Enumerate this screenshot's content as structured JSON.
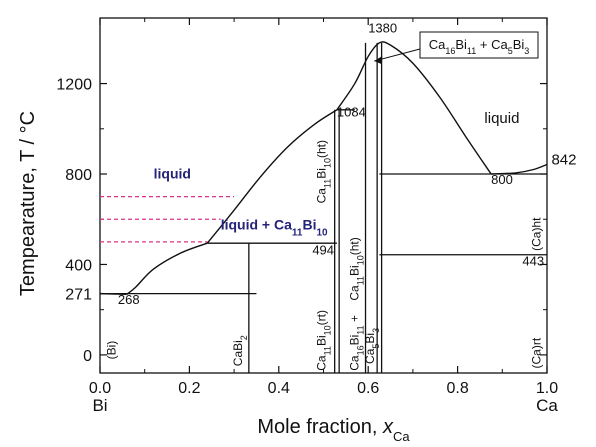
{
  "chart_data": {
    "type": "line",
    "xlim": [
      0.0,
      1.0
    ],
    "ylim": [
      -80,
      1490
    ],
    "x_ticks": [
      "0.0",
      "0.2",
      "0.4",
      "0.6",
      "0.8",
      "1.0"
    ],
    "y_ticks": [
      "0",
      "400",
      "800",
      "1200"
    ],
    "y_special_ticks": [
      "271"
    ],
    "xlabel": {
      "main": "Mole fraction, ",
      "var": "x",
      "sub": "Ca"
    },
    "ylabel": "Tempearature, T / °C",
    "x_end_labels": {
      "left": "Bi",
      "right": "Ca"
    },
    "liquidus": [
      {
        "name": "",
        "points": [
          [
            0.0,
            271
          ],
          [
            0.06,
            268
          ]
        ]
      },
      {
        "name": "",
        "points": [
          [
            0.06,
            268
          ],
          [
            0.08,
            300
          ],
          [
            0.12,
            380
          ],
          [
            0.18,
            450
          ],
          [
            0.24,
            494
          ]
        ]
      },
      {
        "name": "",
        "points": [
          [
            0.24,
            494
          ],
          [
            0.3,
            640
          ],
          [
            0.36,
            790
          ],
          [
            0.42,
            920
          ],
          [
            0.48,
            1020
          ],
          [
            0.53,
            1084
          ]
        ]
      },
      {
        "name": "",
        "points": [
          [
            0.53,
            1084
          ],
          [
            0.57,
            1200
          ],
          [
            0.6,
            1320
          ],
          [
            0.625,
            1380
          ],
          [
            0.65,
            1370
          ],
          [
            0.7,
            1290
          ],
          [
            0.76,
            1140
          ],
          [
            0.82,
            960
          ],
          [
            0.875,
            800
          ]
        ]
      },
      {
        "name": "",
        "points": [
          [
            0.875,
            800
          ],
          [
            0.93,
            805
          ],
          [
            0.97,
            820
          ],
          [
            1.0,
            842
          ]
        ]
      }
    ],
    "horizontal_lines": [
      {
        "x": [
          0.0,
          0.35
        ],
        "y": 271
      },
      {
        "x": [
          0.24,
          0.53
        ],
        "y": 494
      },
      {
        "x": [
          0.53,
          0.57
        ],
        "y": 1084
      },
      {
        "x": [
          0.625,
          1.0
        ],
        "y": 800
      },
      {
        "x": [
          0.625,
          1.0
        ],
        "y": 443
      }
    ],
    "vertical_lines": [
      {
        "x": 0.333,
        "y": [
          -80,
          494
        ]
      },
      {
        "x": 0.525,
        "y": [
          -80,
          1084
        ]
      },
      {
        "x": 0.535,
        "y": [
          -80,
          1084
        ]
      },
      {
        "x": 0.594,
        "y": [
          -80,
          1380
        ]
      },
      {
        "x": 0.62,
        "y": [
          -80,
          1380
        ]
      },
      {
        "x": 0.63,
        "y": [
          -80,
          1380
        ]
      }
    ],
    "dashed_lines": [
      {
        "x": [
          0.0,
          0.3
        ],
        "y": 700
      },
      {
        "x": [
          0.0,
          0.27
        ],
        "y": 600
      },
      {
        "x": [
          0.0,
          0.24
        ],
        "y": 500
      }
    ],
    "point_labels": [
      {
        "text": "268",
        "x": 0.04,
        "y": 225
      },
      {
        "text": "494",
        "x": 0.475,
        "y": 445
      },
      {
        "text": "1084",
        "x": 0.53,
        "y": 1055
      },
      {
        "text": "1380",
        "x": 0.6,
        "y": 1425
      },
      {
        "text": "800",
        "x": 0.875,
        "y": 755
      },
      {
        "text": "842",
        "x": 1.01,
        "y": 842
      },
      {
        "text": "443",
        "x": 0.945,
        "y": 395
      }
    ],
    "region_labels": [
      {
        "text": "liquid",
        "x": 0.12,
        "y": 780,
        "color": "#25237a"
      },
      {
        "text": "liquid",
        "x": 0.86,
        "y": 1025,
        "color": "#111111"
      },
      {
        "text": "liquid + Ca",
        "sub": "11",
        "tail": "Bi",
        "sub2": "10",
        "x": 0.27,
        "y": 555,
        "color": "#25237a"
      }
    ],
    "phase_labels": [
      {
        "text": "(Bi)",
        "x": 0.035,
        "y": -20
      },
      {
        "text": "CaBi",
        "sub": "2",
        "x": 0.318,
        "y": -50
      },
      {
        "text": "Ca",
        "sub": "11",
        "tail": "Bi",
        "sub2": "10",
        "tail2": "(rt)",
        "x": 0.505,
        "y": -70
      },
      {
        "text": "Ca",
        "sub": "11",
        "tail": "Bi",
        "sub2": "10",
        "tail2": "(ht)",
        "x": 0.505,
        "y": 670
      },
      {
        "text": "Ca",
        "sub": "16",
        "tail": "Bi",
        "sub2": "11",
        "tail2": " + ",
        "x": 0.578,
        "y": -70
      },
      {
        "text": "Ca",
        "sub": "11",
        "tail": "Bi",
        "sub2": "10",
        "tail2": "(ht)",
        "x": 0.578,
        "y": 240
      },
      {
        "text": "Ca",
        "sub": "5",
        "tail": "Bi",
        "sub2": "3",
        "x": 0.613,
        "y": -40
      },
      {
        "text": "(Ca)ht",
        "x": 0.985,
        "y": 460
      },
      {
        "text": "(Ca)rt",
        "x": 0.985,
        "y": -60
      }
    ],
    "callout": {
      "text": "Ca",
      "sub": "16",
      "tail": "Bi",
      "sub2": "11",
      "tail2": " + Ca",
      "sub3": "5",
      "tail3": "Bi",
      "sub4": "3"
    },
    "grid": false
  }
}
